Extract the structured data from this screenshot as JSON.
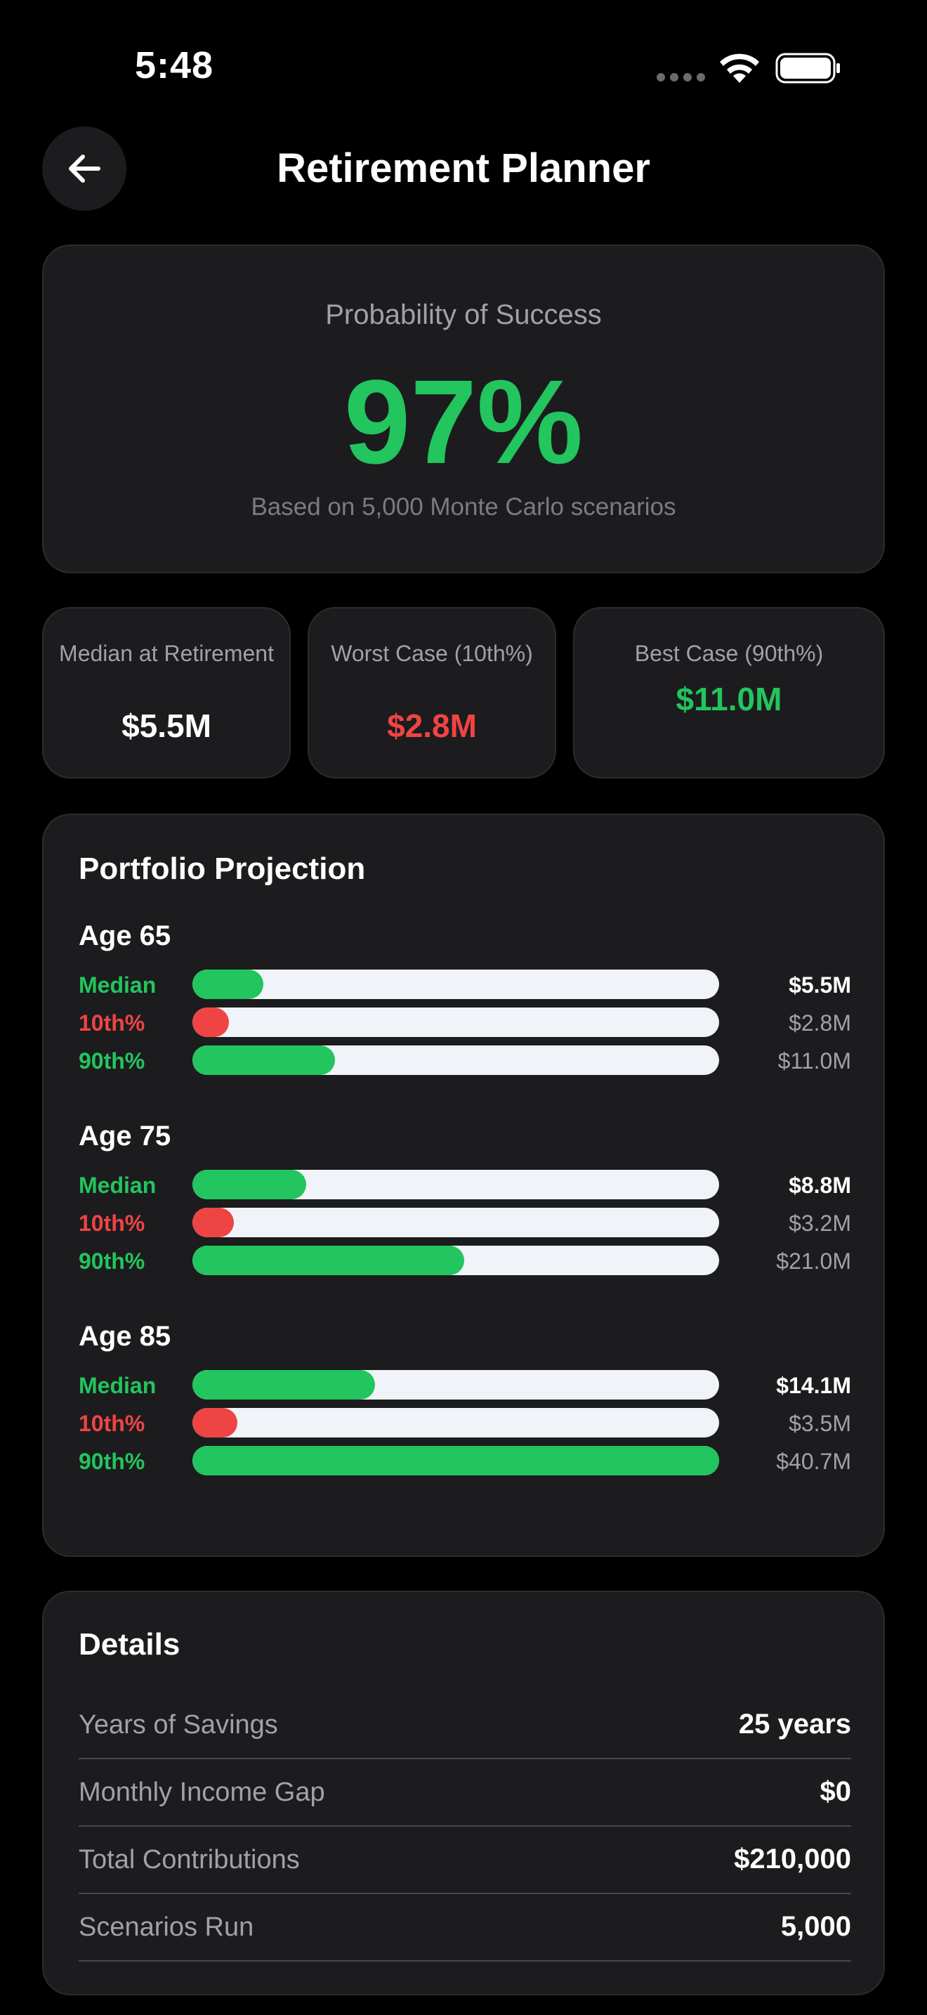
{
  "status_bar": {
    "time": "5:48"
  },
  "header": {
    "title": "Retirement Planner"
  },
  "success": {
    "label": "Probability of Success",
    "value": "97%",
    "note": "Based on 5,000 Monte Carlo scenarios"
  },
  "stats": [
    {
      "label": "Median at Retirement",
      "value": "$5.5M",
      "color": "#ffffff"
    },
    {
      "label": "Worst Case (10th%)",
      "value": "$2.8M",
      "color": "#ef4444"
    },
    {
      "label": "Best Case (90th%)",
      "value": "$11.0M",
      "color": "#22c55e"
    }
  ],
  "projection": {
    "title": "Portfolio Projection",
    "max_value_m": 40.7,
    "groups": [
      {
        "age": "Age 65",
        "rows": [
          {
            "label": "Median",
            "value": "$5.5M",
            "amount_m": 5.5,
            "kind": "median"
          },
          {
            "label": "10th%",
            "value": "$2.8M",
            "amount_m": 2.8,
            "kind": "low"
          },
          {
            "label": "90th%",
            "value": "$11.0M",
            "amount_m": 11.0,
            "kind": "high"
          }
        ]
      },
      {
        "age": "Age 75",
        "rows": [
          {
            "label": "Median",
            "value": "$8.8M",
            "amount_m": 8.8,
            "kind": "median"
          },
          {
            "label": "10th%",
            "value": "$3.2M",
            "amount_m": 3.2,
            "kind": "low"
          },
          {
            "label": "90th%",
            "value": "$21.0M",
            "amount_m": 21.0,
            "kind": "high"
          }
        ]
      },
      {
        "age": "Age 85",
        "rows": [
          {
            "label": "Median",
            "value": "$14.1M",
            "amount_m": 14.1,
            "kind": "median"
          },
          {
            "label": "10th%",
            "value": "$3.5M",
            "amount_m": 3.5,
            "kind": "low"
          },
          {
            "label": "90th%",
            "value": "$40.7M",
            "amount_m": 40.7,
            "kind": "high"
          }
        ]
      }
    ]
  },
  "details": {
    "title": "Details",
    "rows": [
      {
        "label": "Years of Savings",
        "value": "25 years"
      },
      {
        "label": "Monthly Income Gap",
        "value": "$0"
      },
      {
        "label": "Total Contributions",
        "value": "$210,000"
      },
      {
        "label": "Scenarios Run",
        "value": "5,000"
      }
    ]
  },
  "colors": {
    "green": "#22c55e",
    "red": "#ef4444",
    "card": "#1c1c1e"
  }
}
